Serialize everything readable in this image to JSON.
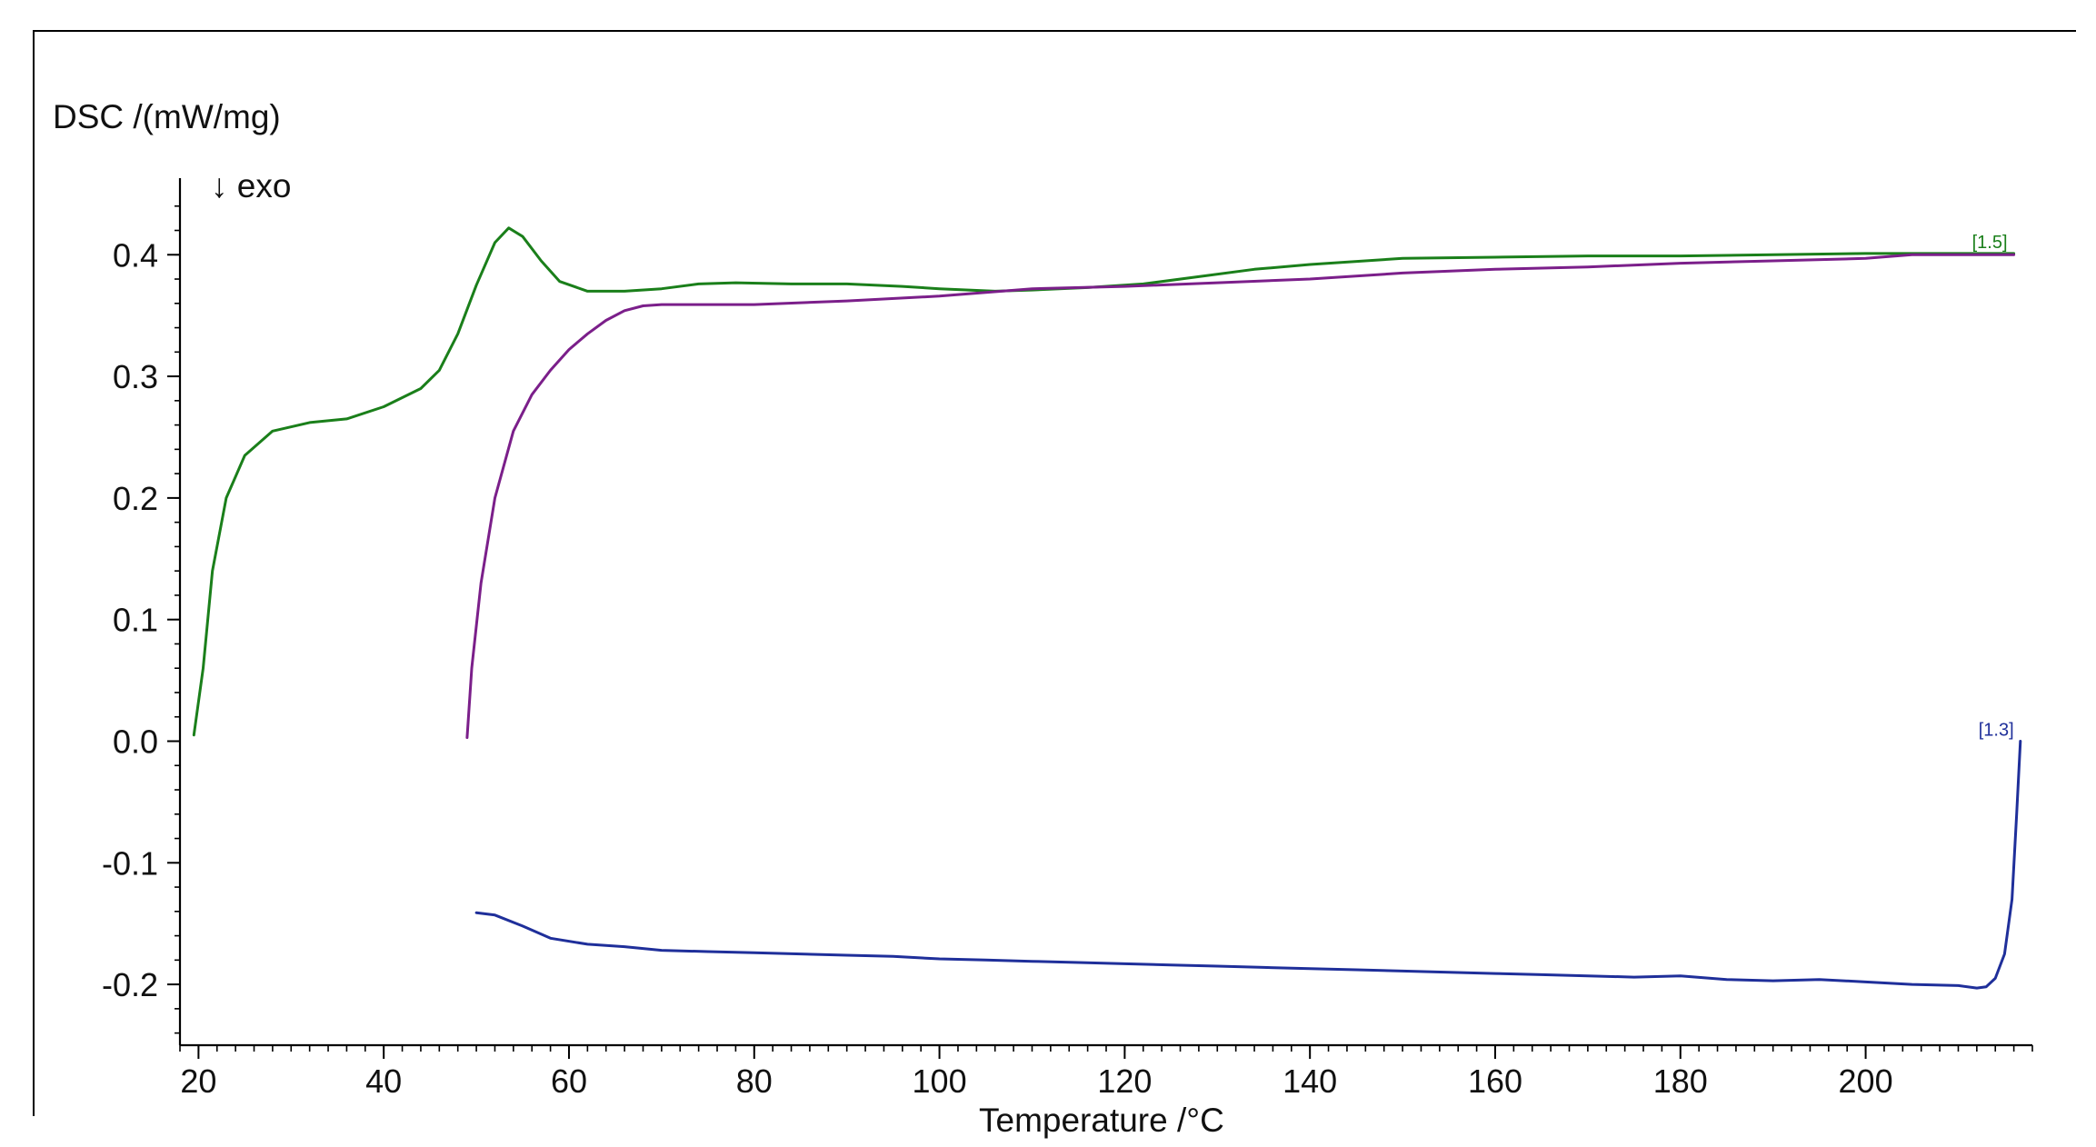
{
  "chart_data": {
    "type": "line",
    "ylabel": "DSC /(mW/mg)",
    "xlabel": "Temperature /°C",
    "annotation": "↓ exo",
    "xlim": [
      18,
      218
    ],
    "ylim": [
      -0.25,
      0.46
    ],
    "xticks": [
      20,
      40,
      60,
      80,
      100,
      120,
      140,
      160,
      180,
      200
    ],
    "yticks": [
      0.4,
      0.3,
      0.2,
      0.1,
      0.0,
      -0.1,
      -0.2
    ],
    "xtick_labels": [
      "20",
      "40",
      "60",
      "80",
      "100",
      "120",
      "140",
      "160",
      "180",
      "200"
    ],
    "ytick_labels": [
      "0.4",
      "0.3",
      "0.2",
      "0.1",
      "0.0",
      "-0.1",
      "-0.2"
    ],
    "grid": false,
    "series": [
      {
        "label": "[1.5]",
        "color": "#1a7f1a",
        "points": [
          [
            19.5,
            0.005
          ],
          [
            20.5,
            0.06
          ],
          [
            21.5,
            0.14
          ],
          [
            23,
            0.2
          ],
          [
            25,
            0.235
          ],
          [
            28,
            0.255
          ],
          [
            32,
            0.262
          ],
          [
            36,
            0.265
          ],
          [
            40,
            0.275
          ],
          [
            44,
            0.29
          ],
          [
            46,
            0.305
          ],
          [
            48,
            0.335
          ],
          [
            50,
            0.375
          ],
          [
            52,
            0.41
          ],
          [
            53.5,
            0.422
          ],
          [
            55,
            0.415
          ],
          [
            57,
            0.395
          ],
          [
            59,
            0.378
          ],
          [
            62,
            0.37
          ],
          [
            66,
            0.37
          ],
          [
            70,
            0.372
          ],
          [
            74,
            0.376
          ],
          [
            78,
            0.377
          ],
          [
            84,
            0.376
          ],
          [
            90,
            0.376
          ],
          [
            96,
            0.374
          ],
          [
            100,
            0.372
          ],
          [
            106,
            0.37
          ],
          [
            110,
            0.371
          ],
          [
            116,
            0.373
          ],
          [
            122,
            0.376
          ],
          [
            128,
            0.382
          ],
          [
            134,
            0.388
          ],
          [
            140,
            0.392
          ],
          [
            150,
            0.397
          ],
          [
            160,
            0.398
          ],
          [
            170,
            0.399
          ],
          [
            180,
            0.399
          ],
          [
            190,
            0.4
          ],
          [
            200,
            0.401
          ],
          [
            210,
            0.401
          ],
          [
            216,
            0.401
          ]
        ]
      },
      {
        "color": "#7b1f8a",
        "points": [
          [
            49,
            0.003
          ],
          [
            49.5,
            0.06
          ],
          [
            50.5,
            0.13
          ],
          [
            52,
            0.2
          ],
          [
            54,
            0.255
          ],
          [
            56,
            0.285
          ],
          [
            58,
            0.305
          ],
          [
            60,
            0.322
          ],
          [
            62,
            0.335
          ],
          [
            64,
            0.346
          ],
          [
            66,
            0.354
          ],
          [
            68,
            0.358
          ],
          [
            70,
            0.359
          ],
          [
            75,
            0.359
          ],
          [
            80,
            0.359
          ],
          [
            90,
            0.362
          ],
          [
            100,
            0.366
          ],
          [
            110,
            0.372
          ],
          [
            120,
            0.374
          ],
          [
            130,
            0.377
          ],
          [
            140,
            0.38
          ],
          [
            150,
            0.385
          ],
          [
            160,
            0.388
          ],
          [
            170,
            0.39
          ],
          [
            180,
            0.393
          ],
          [
            190,
            0.395
          ],
          [
            200,
            0.397
          ],
          [
            205,
            0.4
          ],
          [
            216,
            0.4
          ]
        ]
      },
      {
        "label": "[1.3]",
        "color": "#1f2f9a",
        "points": [
          [
            50,
            -0.141
          ],
          [
            52,
            -0.143
          ],
          [
            55,
            -0.152
          ],
          [
            58,
            -0.162
          ],
          [
            62,
            -0.167
          ],
          [
            66,
            -0.169
          ],
          [
            70,
            -0.172
          ],
          [
            75,
            -0.173
          ],
          [
            80,
            -0.174
          ],
          [
            85,
            -0.175
          ],
          [
            90,
            -0.176
          ],
          [
            95,
            -0.177
          ],
          [
            100,
            -0.179
          ],
          [
            105,
            -0.18
          ],
          [
            110,
            -0.181
          ],
          [
            115,
            -0.182
          ],
          [
            120,
            -0.183
          ],
          [
            125,
            -0.184
          ],
          [
            130,
            -0.185
          ],
          [
            135,
            -0.186
          ],
          [
            140,
            -0.187
          ],
          [
            145,
            -0.188
          ],
          [
            150,
            -0.189
          ],
          [
            155,
            -0.19
          ],
          [
            160,
            -0.191
          ],
          [
            165,
            -0.192
          ],
          [
            170,
            -0.193
          ],
          [
            175,
            -0.194
          ],
          [
            180,
            -0.193
          ],
          [
            185,
            -0.196
          ],
          [
            190,
            -0.197
          ],
          [
            195,
            -0.196
          ],
          [
            200,
            -0.198
          ],
          [
            205,
            -0.2
          ],
          [
            210,
            -0.201
          ],
          [
            212,
            -0.203
          ],
          [
            213,
            -0.202
          ],
          [
            214,
            -0.195
          ],
          [
            215,
            -0.175
          ],
          [
            215.8,
            -0.13
          ],
          [
            216.3,
            -0.06
          ],
          [
            216.7,
            0.0
          ]
        ]
      }
    ]
  }
}
